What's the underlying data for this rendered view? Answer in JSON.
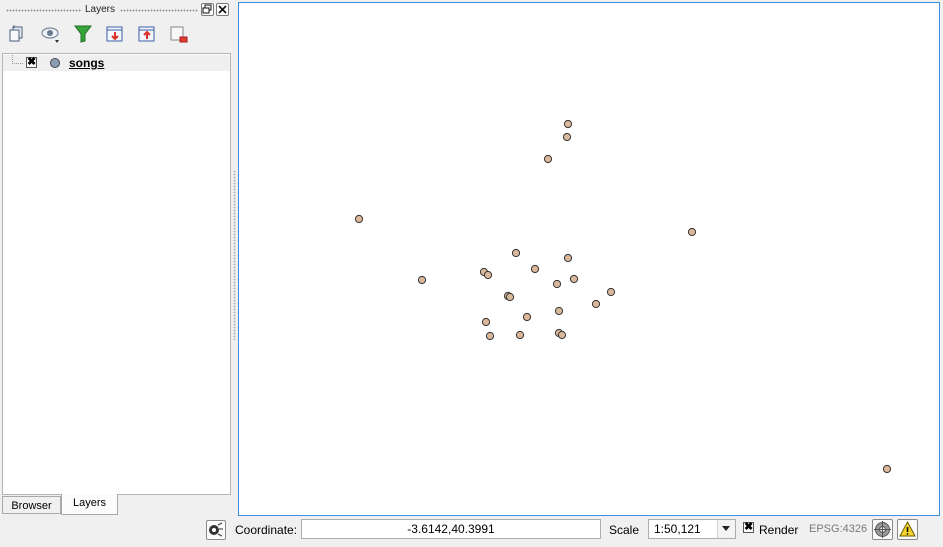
{
  "layers_panel": {
    "title": "Layers",
    "layers": [
      {
        "name": "songs",
        "checked_mark": "✖"
      }
    ],
    "tabs": [
      "Browser",
      "Layers"
    ],
    "active_tab": "Layers",
    "toolbar_icons": [
      "add-group-icon",
      "visibility-icon",
      "filter-icon",
      "expand-all-icon",
      "collapse-all-icon",
      "remove-layer-icon"
    ]
  },
  "map": {
    "point_fill": "#d9b79b",
    "point_stroke": "#333333",
    "border_color": "#3c8fe3"
  },
  "status_bar": {
    "coordinate_label": "Coordinate:",
    "coordinate_value": "-3.6142,40.3991",
    "scale_label": "Scale",
    "scale_value": "1:50,121",
    "render_label": "Render",
    "render_mark": "✖",
    "crs": "EPSG:4326"
  }
}
